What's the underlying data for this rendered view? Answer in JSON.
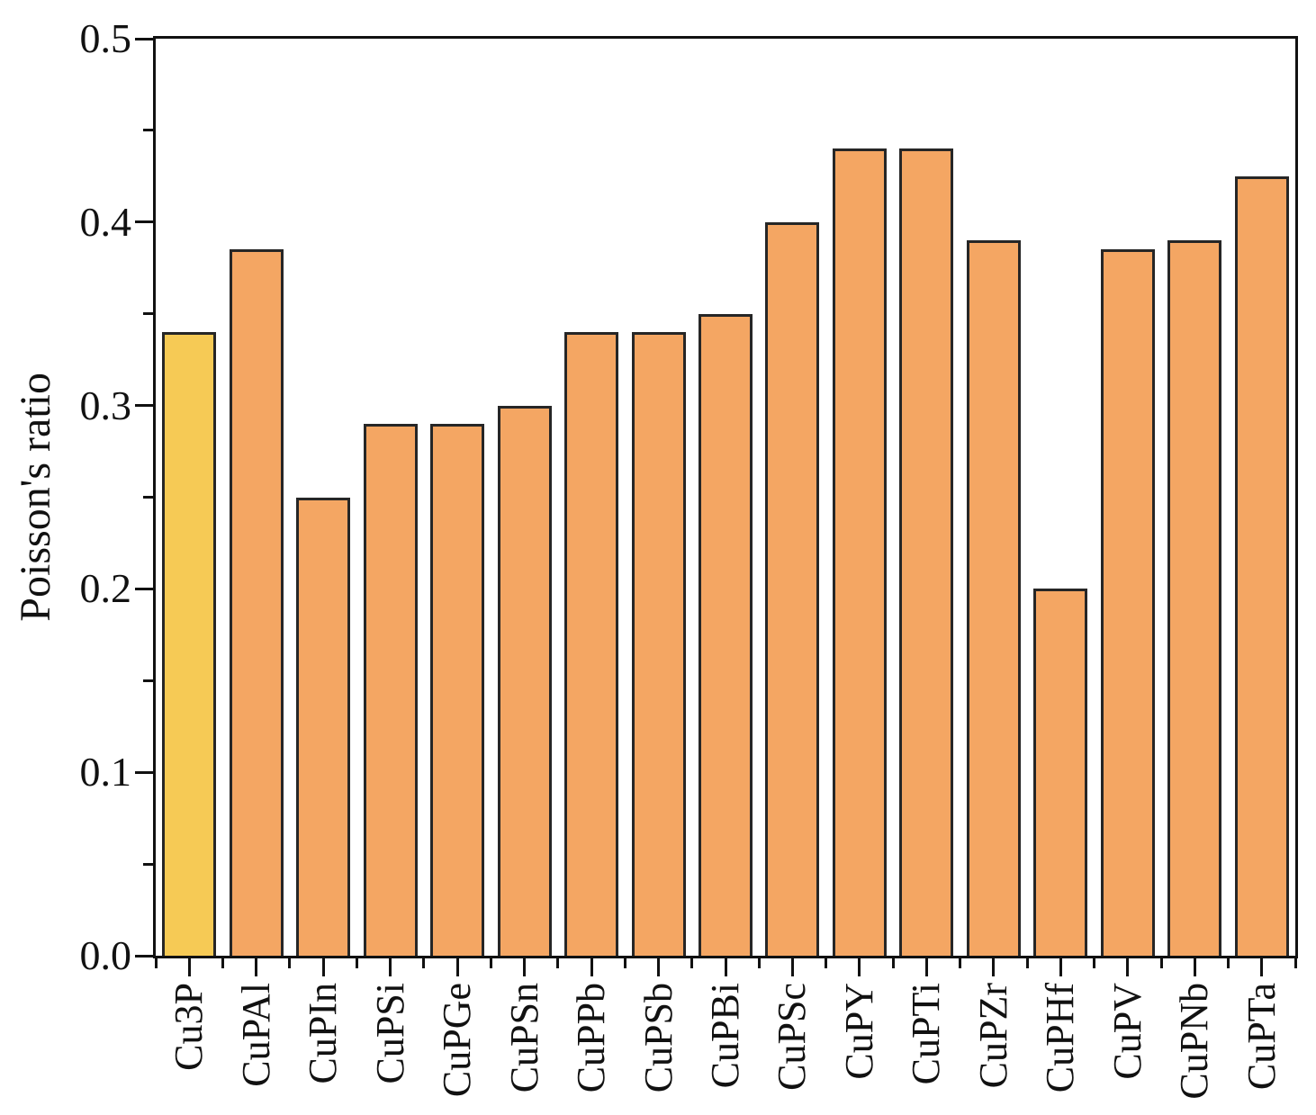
{
  "figure": {
    "background": "#ffffff"
  },
  "chart_data": {
    "type": "bar",
    "title": "",
    "xlabel": "",
    "ylabel": "Poisson's ratio",
    "ylim": [
      0.0,
      0.5
    ],
    "y_major_ticks": [
      0.0,
      0.1,
      0.2,
      0.3,
      0.4,
      0.5
    ],
    "y_tick_label_format_decimals": 1,
    "y_minor_tick_step": 0.05,
    "grid": false,
    "legend": "none",
    "x_tick_label_rotation_deg": 90,
    "categories": [
      "Cu3P",
      "CuPAl",
      "CuPIn",
      "CuPSi",
      "CuPGe",
      "CuPSn",
      "CuPPb",
      "CuPSb",
      "CuPBi",
      "CuPSc",
      "CuPY",
      "CuPTi",
      "CuPZr",
      "CuPHf",
      "CuPV",
      "CuPNb",
      "CuPTa"
    ],
    "values": [
      0.34,
      0.385,
      0.25,
      0.29,
      0.29,
      0.3,
      0.34,
      0.34,
      0.35,
      0.4,
      0.44,
      0.44,
      0.39,
      0.2,
      0.385,
      0.39,
      0.425
    ],
    "colors": {
      "bar_default": "#F4A663",
      "bar_highlight": "#F6CA55",
      "highlight_index": 0,
      "bar_border": "#262626",
      "axis": "#111111",
      "text": "#111111"
    }
  }
}
